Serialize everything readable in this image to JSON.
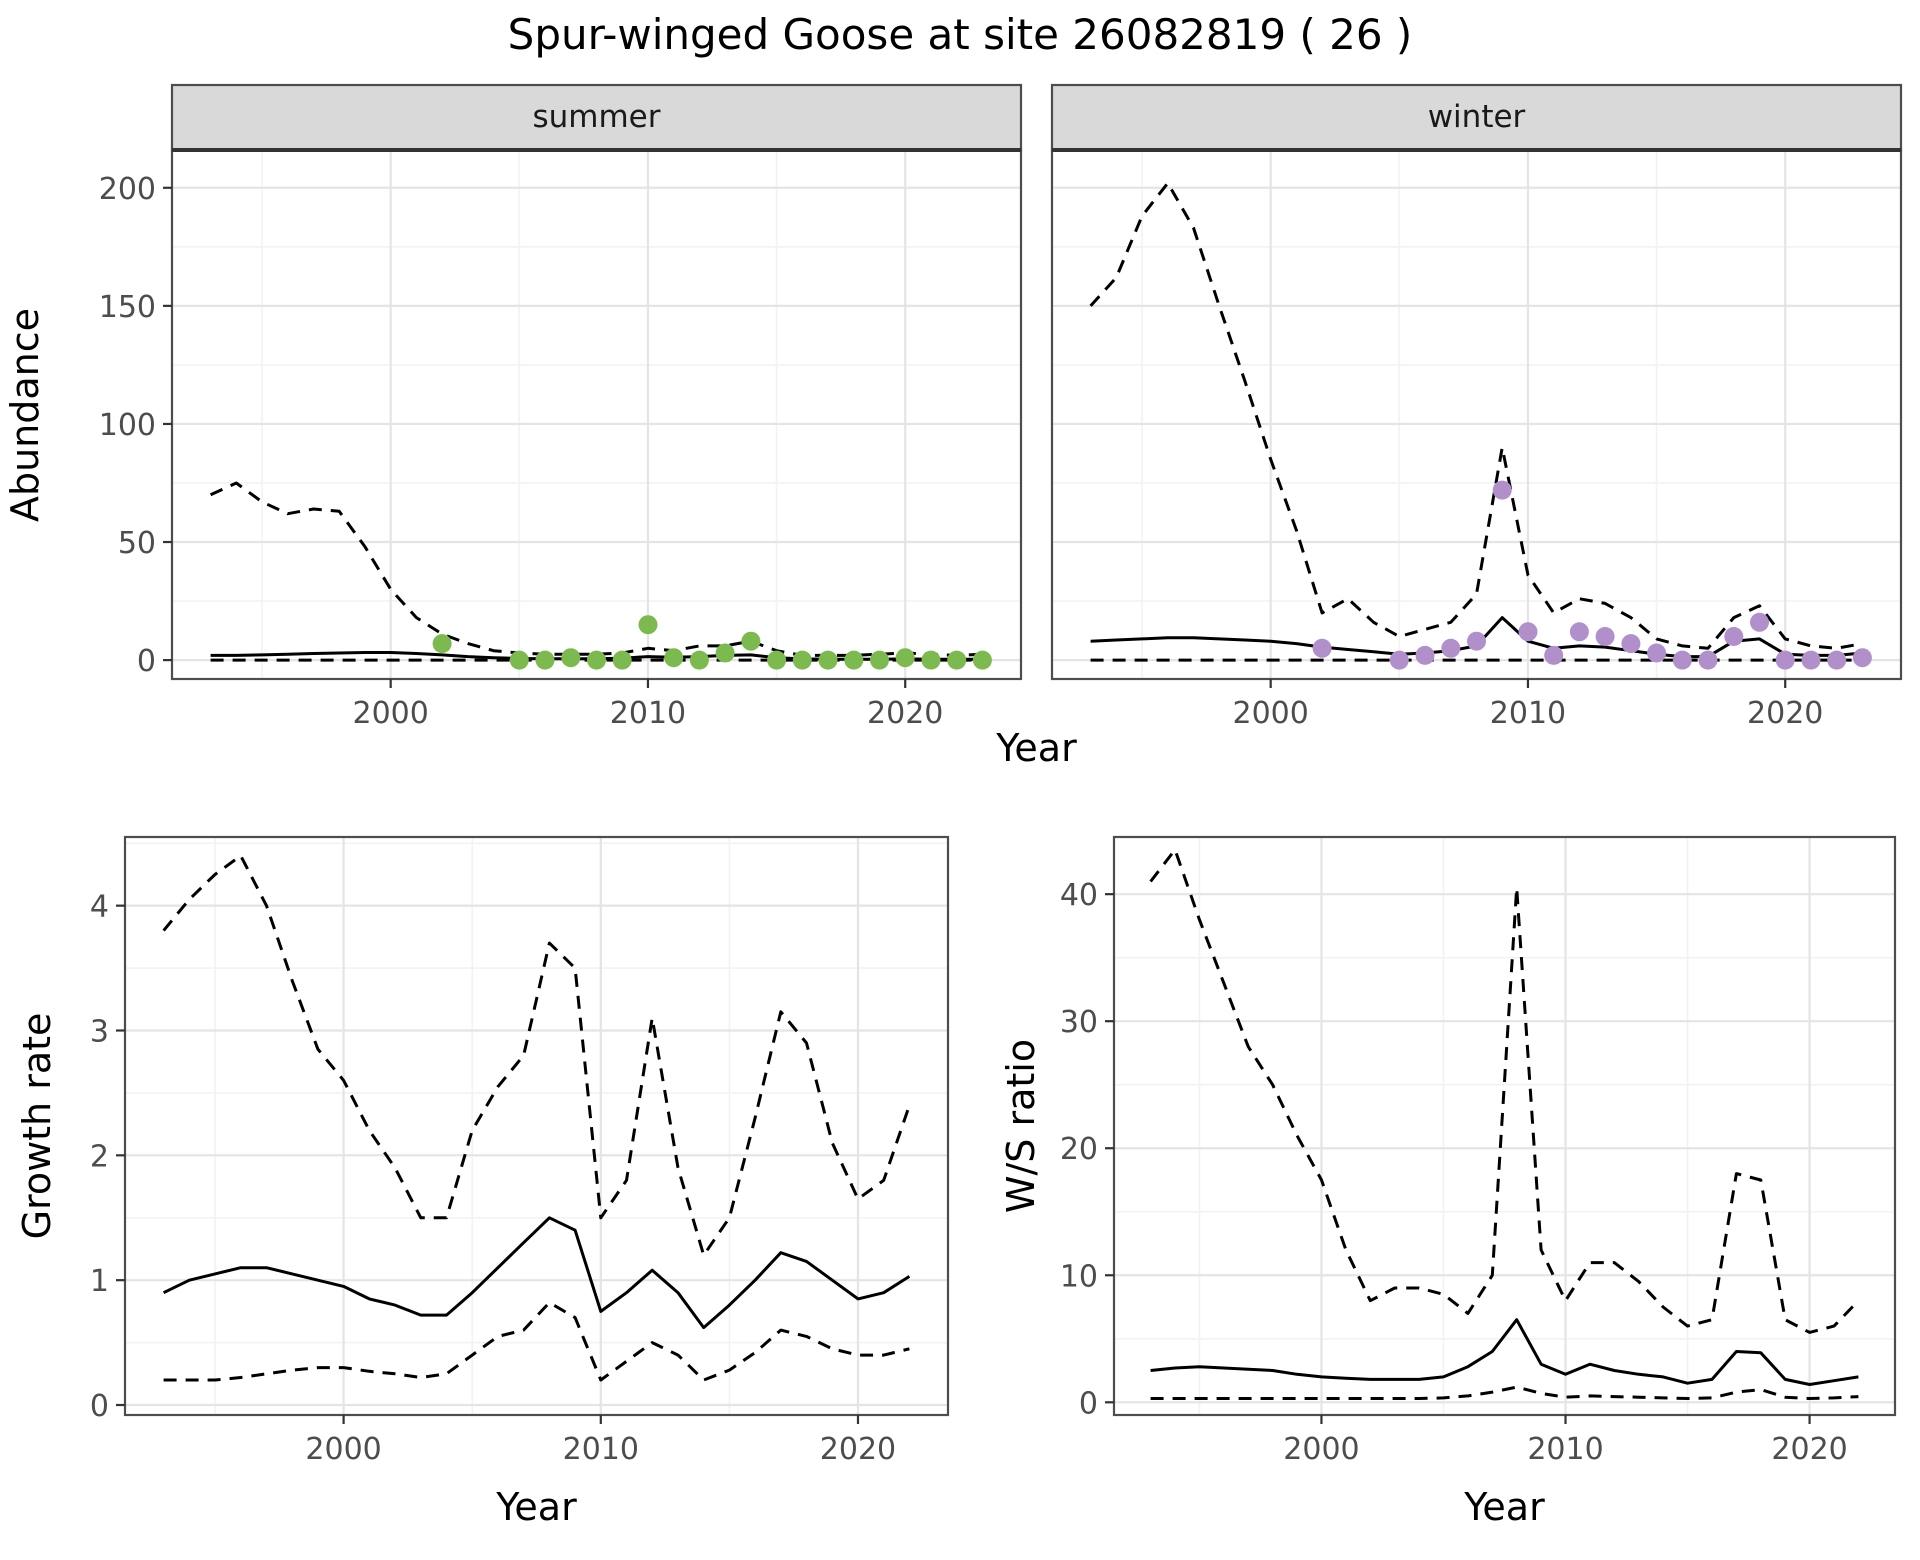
{
  "title": "Spur-winged Goose at site 26082819 ( 26 )",
  "style_colors": {
    "line": "#000000",
    "grid_major": "#E4E4E4",
    "grid_minor": "#F2F2F2",
    "panel_border": "#4D4D4D",
    "strip_background": "#D9D9D9",
    "strip_line": "#333333",
    "tick_mark": "#333333",
    "tick_text": "#4D4D4D",
    "summer_point": "#7CBA50",
    "winter_point": "#B18FCB"
  },
  "chart_data": [
    {
      "id": "abundance-summer",
      "type": "line",
      "facet": "summer",
      "title": "",
      "xlabel": "Year",
      "ylabel": "Abundance",
      "xlim": [
        1991.5,
        2024.5
      ],
      "ylim": [
        -8,
        216
      ],
      "xticks": [
        2000,
        2010,
        2020
      ],
      "yticks": [
        0,
        50,
        100,
        150,
        200
      ],
      "xminor": [
        1995,
        2005,
        2015
      ],
      "yminor": [
        25,
        75,
        125,
        175
      ],
      "series": [
        {
          "name": "upper_ci",
          "style": "dashed",
          "x": [
            1993,
            1994,
            1995,
            1996,
            1997,
            1998,
            1999,
            2000,
            2001,
            2002,
            2003,
            2004,
            2005,
            2006,
            2007,
            2008,
            2009,
            2010,
            2011,
            2012,
            2013,
            2014,
            2015,
            2016,
            2017,
            2018,
            2019,
            2020,
            2021,
            2022,
            2023
          ],
          "y": [
            70,
            75,
            67,
            62,
            64,
            63,
            48,
            30,
            18,
            11,
            7,
            4,
            3,
            2.5,
            2.5,
            2.5,
            3,
            5,
            4,
            6,
            6,
            8,
            4,
            2,
            2,
            2,
            2.5,
            3,
            2.5,
            2,
            2.5
          ]
        },
        {
          "name": "estimate",
          "style": "solid",
          "x": [
            1993,
            1994,
            1995,
            1996,
            1997,
            1998,
            1999,
            2000,
            2001,
            2002,
            2003,
            2004,
            2005,
            2006,
            2007,
            2008,
            2009,
            2010,
            2011,
            2012,
            2013,
            2014,
            2015,
            2016,
            2017,
            2018,
            2019,
            2020,
            2021,
            2022,
            2023
          ],
          "y": [
            2,
            2,
            2.2,
            2.5,
            2.8,
            3,
            3.2,
            3.2,
            2.8,
            2.2,
            1.5,
            1,
            0.7,
            0.6,
            0.6,
            0.6,
            0.8,
            1.5,
            1.2,
            1.5,
            2,
            2.2,
            1,
            0.5,
            0.4,
            0.4,
            0.4,
            0.5,
            0.4,
            0.4,
            0.4
          ]
        },
        {
          "name": "lower_ci",
          "style": "dashed",
          "x": [
            1993,
            1994,
            1995,
            1996,
            1997,
            1998,
            1999,
            2000,
            2001,
            2002,
            2003,
            2004,
            2005,
            2006,
            2007,
            2008,
            2009,
            2010,
            2011,
            2012,
            2013,
            2014,
            2015,
            2016,
            2017,
            2018,
            2019,
            2020,
            2021,
            2022,
            2023
          ],
          "y": [
            0,
            0,
            0,
            0,
            0,
            0,
            0,
            0,
            0,
            0,
            0,
            0,
            0,
            0,
            0,
            0,
            0,
            0,
            0,
            0,
            0,
            0,
            0,
            0,
            0,
            0,
            0,
            0,
            0,
            0,
            0
          ]
        }
      ],
      "points": {
        "name": "observed-counts",
        "color": "#7CBA50",
        "x": [
          2002,
          2005,
          2006,
          2007,
          2008,
          2009,
          2010,
          2011,
          2012,
          2013,
          2014,
          2015,
          2016,
          2017,
          2018,
          2019,
          2020,
          2021,
          2022,
          2023
        ],
        "y": [
          7,
          0,
          0,
          1,
          0,
          0,
          15,
          1,
          0,
          3,
          8,
          0,
          0,
          0,
          0,
          0,
          1,
          0,
          0,
          0
        ]
      }
    },
    {
      "id": "abundance-winter",
      "type": "line",
      "facet": "winter",
      "title": "",
      "xlabel": "Year",
      "ylabel": "Abundance",
      "xlim": [
        1991.5,
        2024.5
      ],
      "ylim": [
        -8,
        216
      ],
      "xticks": [
        2000,
        2010,
        2020
      ],
      "yticks": [
        0,
        50,
        100,
        150,
        200
      ],
      "xminor": [
        1995,
        2005,
        2015
      ],
      "yminor": [
        25,
        75,
        125,
        175
      ],
      "series": [
        {
          "name": "upper_ci",
          "style": "dashed",
          "x": [
            1993,
            1994,
            1995,
            1996,
            1997,
            1998,
            1999,
            2000,
            2001,
            2002,
            2003,
            2004,
            2005,
            2006,
            2007,
            2008,
            2009,
            2010,
            2011,
            2012,
            2013,
            2014,
            2015,
            2016,
            2017,
            2018,
            2019,
            2020,
            2021,
            2022,
            2023
          ],
          "y": [
            150,
            162,
            188,
            202,
            183,
            150,
            118,
            85,
            55,
            20,
            26,
            16,
            10,
            13,
            16,
            28,
            90,
            36,
            20,
            26,
            24,
            18,
            9,
            6,
            5,
            18,
            23,
            9,
            6,
            5,
            7
          ]
        },
        {
          "name": "estimate",
          "style": "solid",
          "x": [
            1993,
            1994,
            1995,
            1996,
            1997,
            1998,
            1999,
            2000,
            2001,
            2002,
            2003,
            2004,
            2005,
            2006,
            2007,
            2008,
            2009,
            2010,
            2011,
            2012,
            2013,
            2014,
            2015,
            2016,
            2017,
            2018,
            2019,
            2020,
            2021,
            2022,
            2023
          ],
          "y": [
            8,
            8.5,
            9,
            9.5,
            9.5,
            9,
            8.5,
            8,
            7,
            5.5,
            4.5,
            3.5,
            2.5,
            3,
            4,
            6,
            18,
            8,
            5,
            6,
            5.5,
            4,
            2.5,
            1.5,
            1.5,
            8,
            9,
            2.5,
            2,
            2,
            3
          ]
        },
        {
          "name": "lower_ci",
          "style": "dashed",
          "x": [
            1993,
            1994,
            1995,
            1996,
            1997,
            1998,
            1999,
            2000,
            2001,
            2002,
            2003,
            2004,
            2005,
            2006,
            2007,
            2008,
            2009,
            2010,
            2011,
            2012,
            2013,
            2014,
            2015,
            2016,
            2017,
            2018,
            2019,
            2020,
            2021,
            2022,
            2023
          ],
          "y": [
            0,
            0,
            0,
            0,
            0,
            0,
            0,
            0,
            0,
            0,
            0,
            0,
            0,
            0,
            0,
            0,
            0,
            0,
            0,
            0,
            0,
            0,
            0,
            0,
            0,
            0,
            0,
            0,
            0,
            0,
            0
          ]
        }
      ],
      "points": {
        "name": "observed-counts",
        "color": "#B18FCB",
        "x": [
          2002,
          2005,
          2006,
          2007,
          2008,
          2009,
          2010,
          2011,
          2012,
          2013,
          2014,
          2015,
          2016,
          2017,
          2018,
          2019,
          2020,
          2021,
          2022,
          2023
        ],
        "y": [
          5,
          0,
          2,
          5,
          8,
          72,
          12,
          2,
          12,
          10,
          7,
          3,
          0,
          0,
          10,
          16,
          0,
          0,
          0,
          1
        ]
      }
    },
    {
      "id": "growth-rate",
      "type": "line",
      "facet": "",
      "title": "",
      "xlabel": "Year",
      "ylabel": "Growth rate",
      "xlim": [
        1991.5,
        2023.5
      ],
      "ylim": [
        -0.08,
        4.55
      ],
      "xticks": [
        2000,
        2010,
        2020
      ],
      "yticks": [
        0,
        1,
        2,
        3,
        4
      ],
      "xminor": [
        1995,
        2005,
        2015
      ],
      "yminor": [
        0.5,
        1.5,
        2.5,
        3.5,
        4.5
      ],
      "series": [
        {
          "name": "upper_ci",
          "style": "dashed",
          "x": [
            1993,
            1994,
            1995,
            1996,
            1997,
            1998,
            1999,
            2000,
            2001,
            2002,
            2003,
            2004,
            2005,
            2006,
            2007,
            2008,
            2009,
            2010,
            2011,
            2012,
            2013,
            2014,
            2015,
            2016,
            2017,
            2018,
            2019,
            2020,
            2021,
            2022
          ],
          "y": [
            3.8,
            4.05,
            4.25,
            4.4,
            4.0,
            3.4,
            2.85,
            2.6,
            2.2,
            1.9,
            1.5,
            1.5,
            2.2,
            2.55,
            2.8,
            3.7,
            3.5,
            1.5,
            1.8,
            3.1,
            1.9,
            1.2,
            1.5,
            2.3,
            3.15,
            2.9,
            2.1,
            1.65,
            1.8,
            2.4
          ]
        },
        {
          "name": "estimate",
          "style": "solid",
          "x": [
            1993,
            1994,
            1995,
            1996,
            1997,
            1998,
            1999,
            2000,
            2001,
            2002,
            2003,
            2004,
            2005,
            2006,
            2007,
            2008,
            2009,
            2010,
            2011,
            2012,
            2013,
            2014,
            2015,
            2016,
            2017,
            2018,
            2019,
            2020,
            2021,
            2022
          ],
          "y": [
            0.9,
            1.0,
            1.05,
            1.1,
            1.1,
            1.05,
            1.0,
            0.95,
            0.85,
            0.8,
            0.72,
            0.72,
            0.9,
            1.1,
            1.3,
            1.5,
            1.4,
            0.75,
            0.9,
            1.08,
            0.9,
            0.62,
            0.8,
            1.0,
            1.22,
            1.15,
            1.0,
            0.85,
            0.9,
            1.03
          ]
        },
        {
          "name": "lower_ci",
          "style": "dashed",
          "x": [
            1993,
            1994,
            1995,
            1996,
            1997,
            1998,
            1999,
            2000,
            2001,
            2002,
            2003,
            2004,
            2005,
            2006,
            2007,
            2008,
            2009,
            2010,
            2011,
            2012,
            2013,
            2014,
            2015,
            2016,
            2017,
            2018,
            2019,
            2020,
            2021,
            2022
          ],
          "y": [
            0.2,
            0.2,
            0.2,
            0.22,
            0.25,
            0.28,
            0.3,
            0.3,
            0.27,
            0.25,
            0.22,
            0.25,
            0.4,
            0.55,
            0.6,
            0.82,
            0.7,
            0.2,
            0.35,
            0.5,
            0.4,
            0.2,
            0.28,
            0.42,
            0.6,
            0.55,
            0.45,
            0.4,
            0.4,
            0.45
          ]
        }
      ]
    },
    {
      "id": "ws-ratio",
      "type": "line",
      "facet": "",
      "title": "",
      "xlabel": "Year",
      "ylabel": "W/S ratio",
      "xlim": [
        1991.5,
        2023.5
      ],
      "ylim": [
        -1,
        44.5
      ],
      "xticks": [
        2000,
        2010,
        2020
      ],
      "yticks": [
        0,
        10,
        20,
        30,
        40
      ],
      "xminor": [
        1995,
        2005,
        2015
      ],
      "yminor": [
        5,
        15,
        25,
        35
      ],
      "series": [
        {
          "name": "upper_ci",
          "style": "dashed",
          "x": [
            1993,
            1994,
            1995,
            1996,
            1997,
            1998,
            1999,
            2000,
            2001,
            2002,
            2003,
            2004,
            2005,
            2006,
            2007,
            2008,
            2009,
            2010,
            2011,
            2012,
            2013,
            2014,
            2015,
            2016,
            2017,
            2018,
            2019,
            2020,
            2021,
            2022
          ],
          "y": [
            41,
            43.5,
            38,
            33,
            28,
            25,
            21,
            17.5,
            12,
            8,
            9,
            9,
            8.5,
            7,
            10,
            40.5,
            12,
            8,
            11,
            11,
            9.5,
            7.5,
            6,
            6.5,
            18,
            17.5,
            6.5,
            5.5,
            6,
            8
          ]
        },
        {
          "name": "estimate",
          "style": "solid",
          "x": [
            1993,
            1994,
            1995,
            1996,
            1997,
            1998,
            1999,
            2000,
            2001,
            2002,
            2003,
            2004,
            2005,
            2006,
            2007,
            2008,
            2009,
            2010,
            2011,
            2012,
            2013,
            2014,
            2015,
            2016,
            2017,
            2018,
            2019,
            2020,
            2021,
            2022
          ],
          "y": [
            2.5,
            2.7,
            2.8,
            2.7,
            2.6,
            2.5,
            2.2,
            2.0,
            1.9,
            1.8,
            1.8,
            1.8,
            2.0,
            2.8,
            4.0,
            6.5,
            3.0,
            2.2,
            3.0,
            2.5,
            2.2,
            2.0,
            1.5,
            1.8,
            4.0,
            3.9,
            1.8,
            1.4,
            1.7,
            2.0
          ]
        },
        {
          "name": "lower_ci",
          "style": "dashed",
          "x": [
            1993,
            1994,
            1995,
            1996,
            1997,
            1998,
            1999,
            2000,
            2001,
            2002,
            2003,
            2004,
            2005,
            2006,
            2007,
            2008,
            2009,
            2010,
            2011,
            2012,
            2013,
            2014,
            2015,
            2016,
            2017,
            2018,
            2019,
            2020,
            2021,
            2022
          ],
          "y": [
            0.3,
            0.3,
            0.3,
            0.3,
            0.3,
            0.3,
            0.3,
            0.3,
            0.3,
            0.3,
            0.3,
            0.3,
            0.35,
            0.5,
            0.8,
            1.2,
            0.7,
            0.4,
            0.5,
            0.45,
            0.4,
            0.35,
            0.3,
            0.35,
            0.8,
            1.0,
            0.4,
            0.3,
            0.35,
            0.45
          ]
        }
      ]
    }
  ]
}
